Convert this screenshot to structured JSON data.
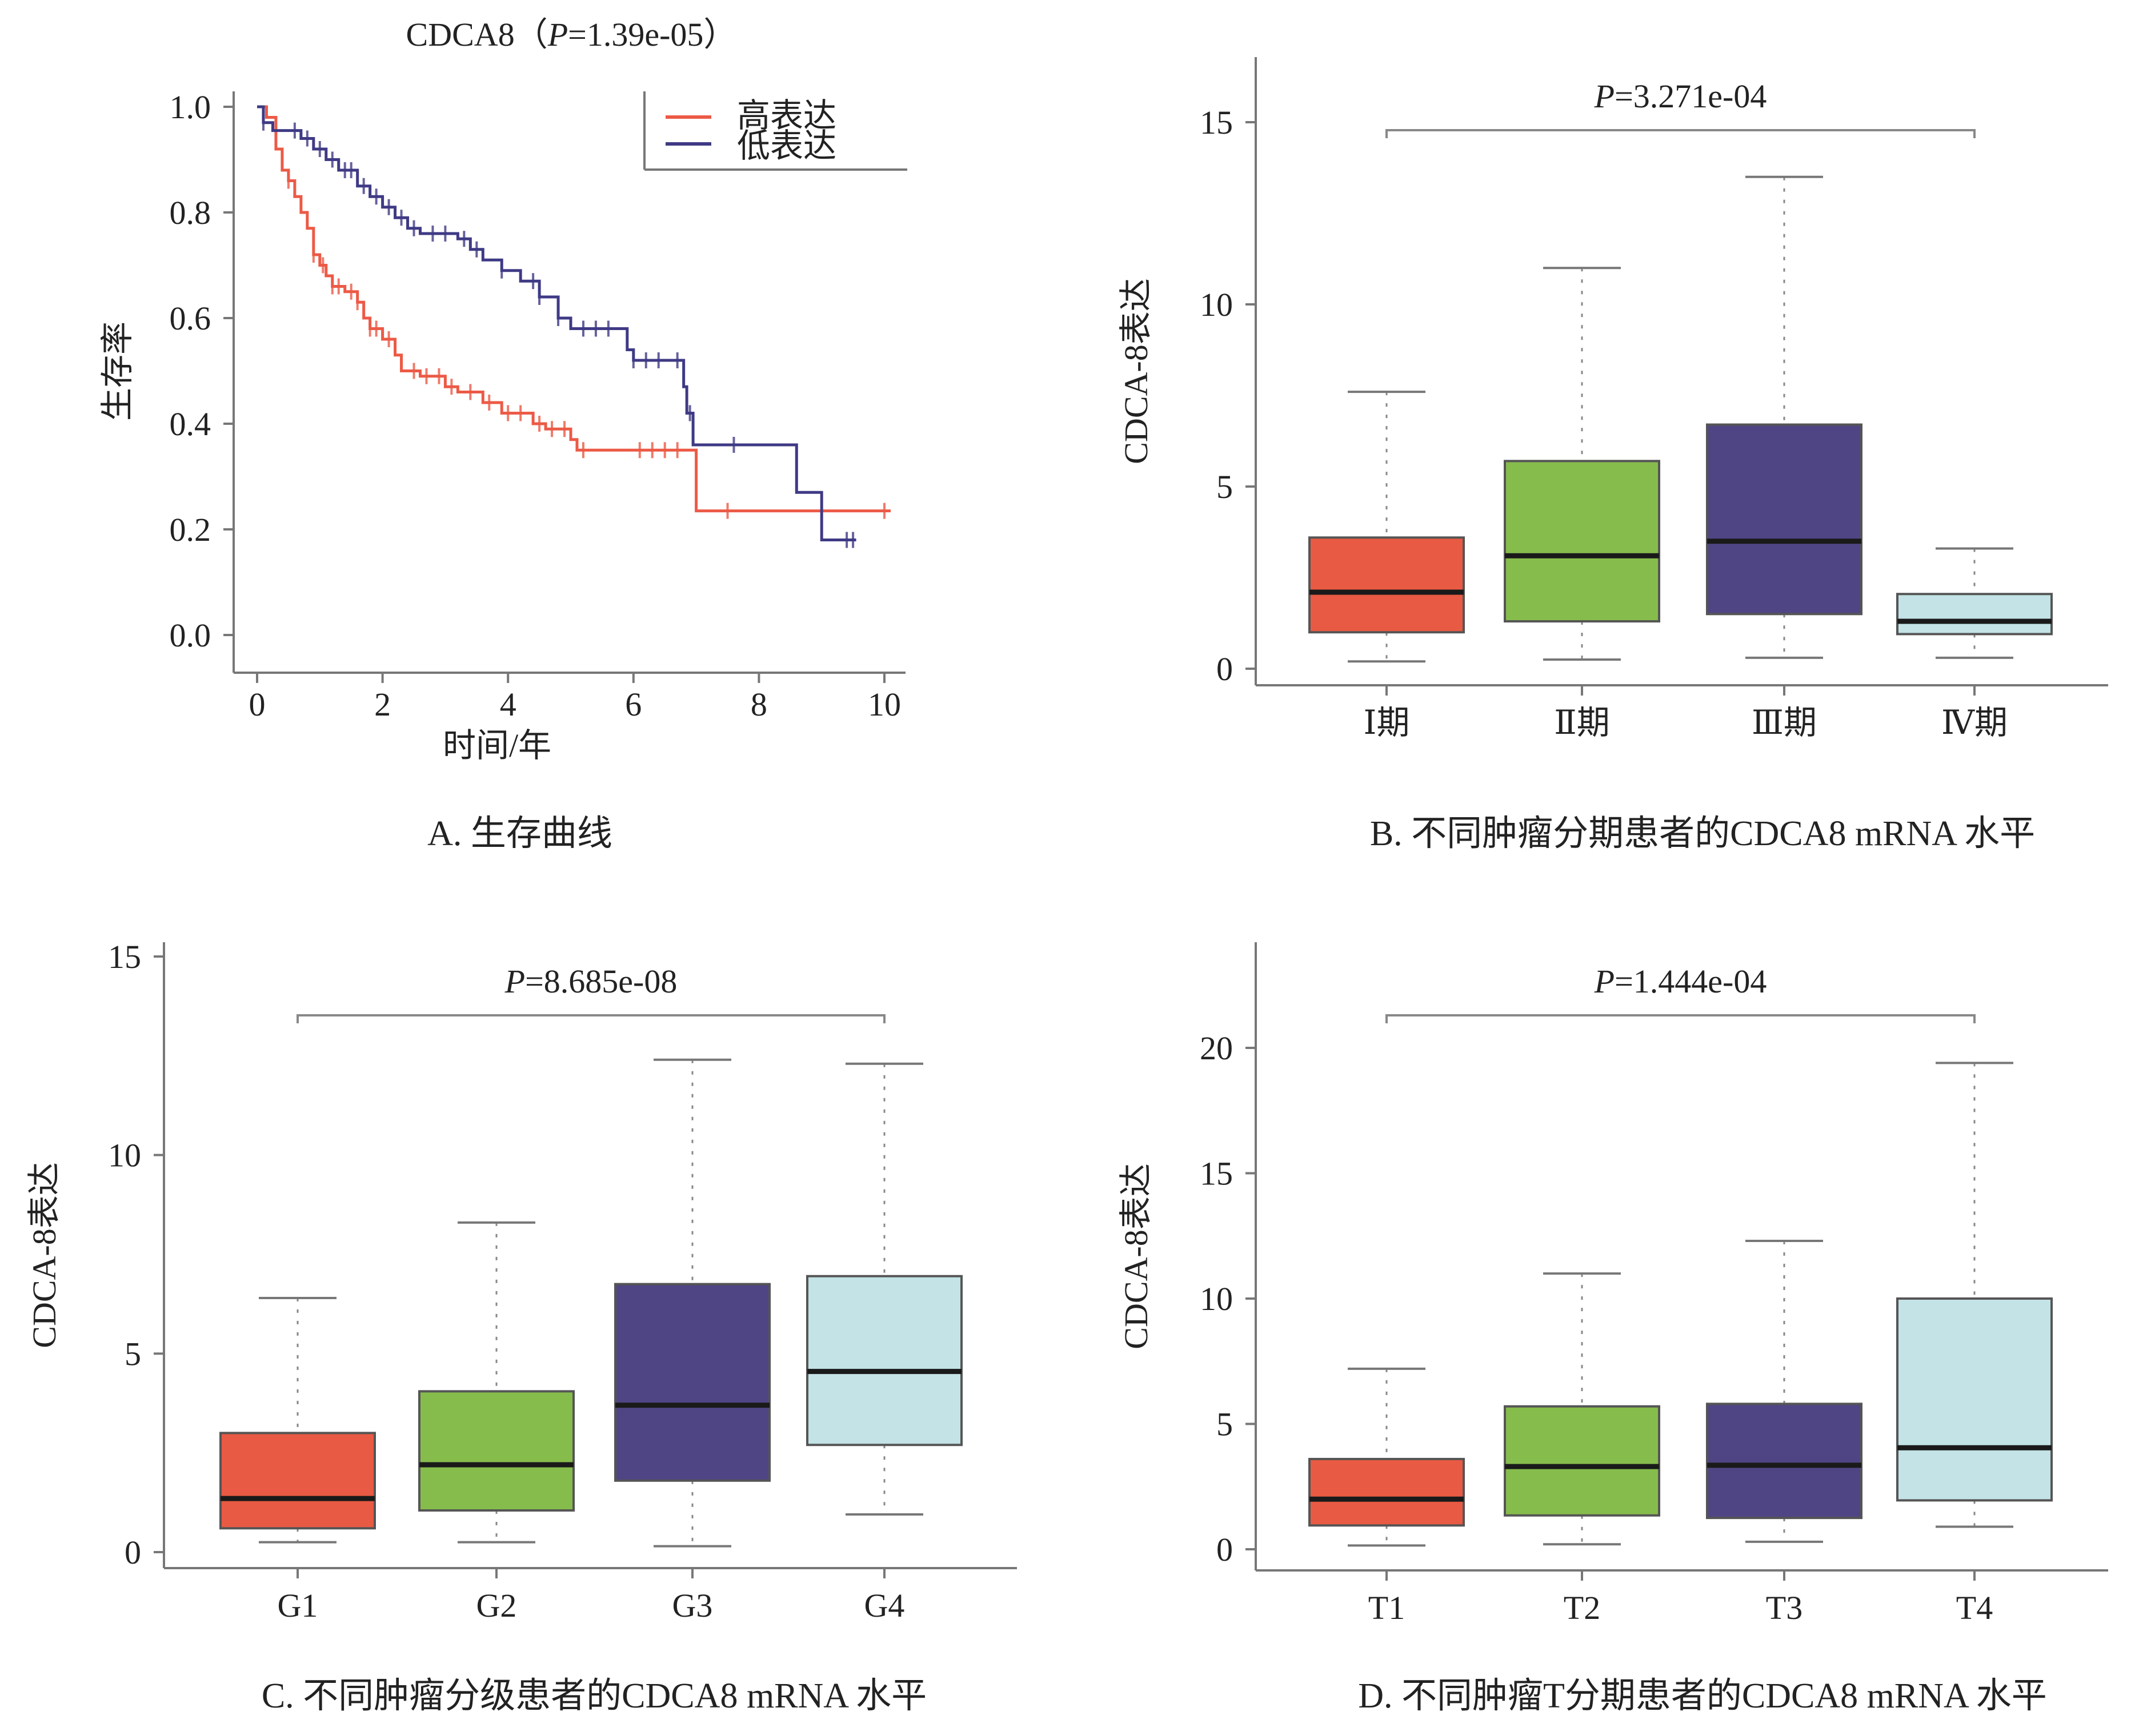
{
  "chart_data": [
    {
      "id": "A",
      "type": "line",
      "title": "CDCA8（P=1.39e-05）",
      "title_prefix": "CDCA8（",
      "title_p": "P",
      "title_value": "=1.39e-05",
      "title_suffix": "）",
      "caption": "A. 生存曲线",
      "xlabel": "时间/年",
      "ylabel": "生存率",
      "xlim": [
        0,
        10
      ],
      "ylim": [
        0,
        1
      ],
      "xticks": [
        "0",
        "2",
        "4",
        "6",
        "8",
        "10"
      ],
      "yticks": [
        "0.0",
        "0.2",
        "0.4",
        "0.6",
        "0.8",
        "1.0"
      ],
      "legend": {
        "position": "top-right",
        "entries": [
          "高表达",
          "低表达"
        ]
      },
      "series": [
        {
          "name": "高表达",
          "color": "#ec5a46",
          "steps": [
            [
              0,
              1.0
            ],
            [
              0.15,
              0.98
            ],
            [
              0.3,
              0.92
            ],
            [
              0.4,
              0.88
            ],
            [
              0.5,
              0.86
            ],
            [
              0.6,
              0.83
            ],
            [
              0.7,
              0.8
            ],
            [
              0.8,
              0.77
            ],
            [
              0.9,
              0.72
            ],
            [
              1.0,
              0.7
            ],
            [
              1.1,
              0.68
            ],
            [
              1.2,
              0.66
            ],
            [
              1.4,
              0.65
            ],
            [
              1.6,
              0.63
            ],
            [
              1.7,
              0.6
            ],
            [
              1.8,
              0.58
            ],
            [
              2.0,
              0.56
            ],
            [
              2.2,
              0.53
            ],
            [
              2.3,
              0.5
            ],
            [
              2.6,
              0.49
            ],
            [
              3.0,
              0.47
            ],
            [
              3.2,
              0.46
            ],
            [
              3.6,
              0.44
            ],
            [
              3.9,
              0.42
            ],
            [
              4.4,
              0.4
            ],
            [
              4.6,
              0.39
            ],
            [
              5.0,
              0.37
            ],
            [
              5.1,
              0.35
            ],
            [
              6.9,
              0.35
            ],
            [
              7.0,
              0.235
            ],
            [
              10.1,
              0.235
            ]
          ],
          "censor": [
            0.5,
            0.9,
            1.05,
            1.2,
            1.3,
            1.5,
            1.6,
            1.8,
            1.9,
            2.1,
            2.5,
            2.7,
            2.9,
            3.1,
            3.4,
            3.7,
            4.0,
            4.2,
            4.5,
            4.7,
            4.9,
            5.2,
            6.1,
            6.3,
            6.5,
            6.7,
            7.5,
            10.0
          ]
        },
        {
          "name": "低表达",
          "color": "#3f3a85",
          "steps": [
            [
              0,
              1.0
            ],
            [
              0.1,
              0.97
            ],
            [
              0.25,
              0.955
            ],
            [
              0.5,
              0.955
            ],
            [
              0.7,
              0.94
            ],
            [
              0.9,
              0.92
            ],
            [
              1.1,
              0.9
            ],
            [
              1.3,
              0.88
            ],
            [
              1.6,
              0.85
            ],
            [
              1.8,
              0.83
            ],
            [
              2.0,
              0.81
            ],
            [
              2.2,
              0.79
            ],
            [
              2.4,
              0.77
            ],
            [
              2.6,
              0.76
            ],
            [
              3.2,
              0.75
            ],
            [
              3.4,
              0.73
            ],
            [
              3.6,
              0.71
            ],
            [
              3.9,
              0.69
            ],
            [
              4.2,
              0.67
            ],
            [
              4.5,
              0.64
            ],
            [
              4.8,
              0.6
            ],
            [
              5.0,
              0.58
            ],
            [
              5.8,
              0.58
            ],
            [
              5.9,
              0.54
            ],
            [
              6.0,
              0.52
            ],
            [
              6.7,
              0.52
            ],
            [
              6.8,
              0.47
            ],
            [
              6.85,
              0.42
            ],
            [
              6.95,
              0.36
            ],
            [
              8.6,
              0.36
            ],
            [
              8.6,
              0.27
            ],
            [
              9.0,
              0.27
            ],
            [
              9.0,
              0.18
            ],
            [
              9.55,
              0.18
            ]
          ],
          "censor": [
            0.1,
            0.6,
            0.8,
            1.0,
            1.2,
            1.4,
            1.5,
            1.7,
            1.9,
            2.1,
            2.3,
            2.5,
            2.8,
            3.0,
            3.3,
            3.5,
            3.9,
            4.4,
            4.5,
            4.8,
            5.2,
            5.4,
            5.6,
            6.0,
            6.2,
            6.4,
            6.7,
            6.9,
            7.6,
            9.4,
            9.5
          ]
        }
      ]
    },
    {
      "id": "B",
      "type": "box",
      "caption": "B. 不同肿瘤分期患者的CDCA8 mRNA 水平",
      "ylabel": "CDCA-8表达",
      "ylim": [
        0,
        15
      ],
      "yticks": [
        "0",
        "5",
        "10",
        "15"
      ],
      "p_label": "P",
      "p_value": "=3.271e-04",
      "categories": [
        "Ⅰ期",
        "Ⅱ期",
        "Ⅲ期",
        "Ⅳ期"
      ],
      "colors": [
        "#e85a43",
        "#86bc4c",
        "#4f4585",
        "#c3e3e6"
      ],
      "boxes": [
        {
          "low": 0.2,
          "q1": 1.0,
          "median": 2.1,
          "q3": 3.6,
          "high": 7.6
        },
        {
          "low": 0.25,
          "q1": 1.3,
          "median": 3.1,
          "q3": 5.7,
          "high": 11.0
        },
        {
          "low": 0.3,
          "q1": 1.5,
          "median": 3.5,
          "q3": 6.7,
          "high": 13.5
        },
        {
          "low": 0.3,
          "q1": 0.95,
          "median": 1.3,
          "q3": 2.05,
          "high": 3.3
        }
      ]
    },
    {
      "id": "C",
      "type": "box",
      "caption": "C. 不同肿瘤分级患者的CDCA8 mRNA 水平",
      "ylabel": "CDCA-8表达",
      "ylim": [
        0,
        15
      ],
      "yticks": [
        "0",
        "5",
        "10",
        "15"
      ],
      "p_label": "P",
      "p_value": "=8.685e-08",
      "categories": [
        "G1",
        "G2",
        "G3",
        "G4"
      ],
      "colors": [
        "#e85a43",
        "#86bc4c",
        "#4f4585",
        "#c3e3e6"
      ],
      "boxes": [
        {
          "low": 0.25,
          "q1": 0.6,
          "median": 1.35,
          "q3": 3.0,
          "high": 6.4
        },
        {
          "low": 0.25,
          "q1": 1.05,
          "median": 2.2,
          "q3": 4.05,
          "high": 8.3
        },
        {
          "low": 0.15,
          "q1": 1.8,
          "median": 3.7,
          "q3": 6.75,
          "high": 12.4
        },
        {
          "low": 0.95,
          "q1": 2.7,
          "median": 4.55,
          "q3": 6.95,
          "high": 12.3
        }
      ]
    },
    {
      "id": "D",
      "type": "box",
      "caption": "D. 不同肿瘤T分期患者的CDCA8 mRNA 水平",
      "ylabel": "CDCA-8表达",
      "ylim": [
        0,
        20
      ],
      "yticks": [
        "0",
        "5",
        "10",
        "15",
        "20"
      ],
      "p_label": "P",
      "p_value": "=1.444e-04",
      "categories": [
        "T1",
        "T2",
        "T3",
        "T4"
      ],
      "colors": [
        "#e85a43",
        "#86bc4c",
        "#4f4585",
        "#c3e3e6"
      ],
      "boxes": [
        {
          "low": 0.15,
          "q1": 0.95,
          "median": 2.0,
          "q3": 3.6,
          "high": 7.2
        },
        {
          "low": 0.2,
          "q1": 1.35,
          "median": 3.3,
          "q3": 5.7,
          "high": 11.0
        },
        {
          "low": 0.3,
          "q1": 1.25,
          "median": 3.35,
          "q3": 5.8,
          "high": 12.3
        },
        {
          "low": 0.9,
          "q1": 1.95,
          "median": 4.05,
          "q3": 10.0,
          "high": 19.4
        }
      ]
    }
  ]
}
